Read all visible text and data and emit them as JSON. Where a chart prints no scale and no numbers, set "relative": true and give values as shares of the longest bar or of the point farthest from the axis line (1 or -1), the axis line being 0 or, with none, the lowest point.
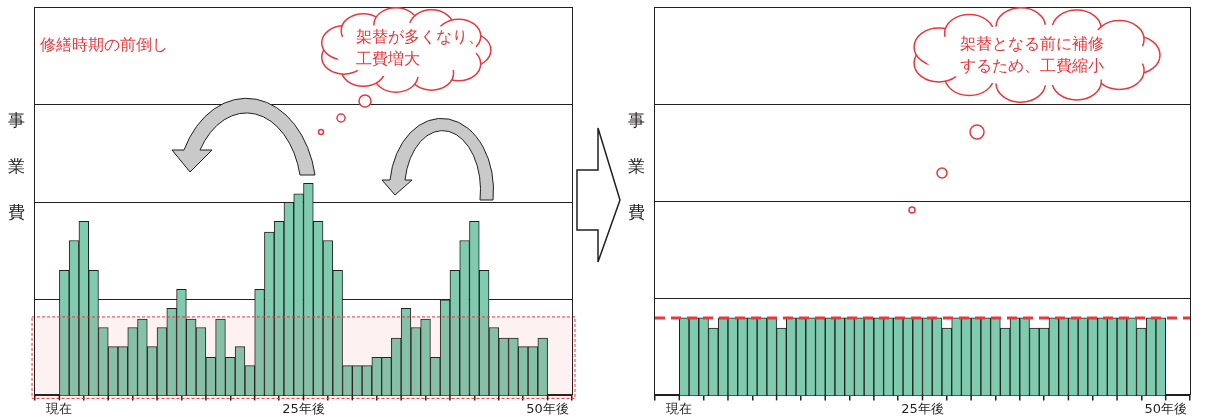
{
  "chart_data": [
    {
      "type": "bar",
      "relative": true,
      "color": "#7fcbb0",
      "ylabel": "事業費",
      "x": [
        0.5,
        1.5,
        2.5,
        3.5,
        4.5,
        5.5,
        6.5,
        7.5,
        8.5,
        9.5,
        10.5,
        11.5,
        12.5,
        13.5,
        14.5,
        15.5,
        16.5,
        17.5,
        18.5,
        19.5,
        20.5,
        21.5,
        22.5,
        23.5,
        24.5,
        25.5,
        26.5,
        27.5,
        28.5,
        29.5,
        30.5,
        31.5,
        32.5,
        33.5,
        34.5,
        35.5,
        36.5,
        37.5,
        38.5,
        39.5,
        40.5,
        41.5,
        42.5,
        43.5,
        44.5,
        45.5,
        46.5,
        47.5,
        48.5,
        49.5
      ],
      "values": [
        0.59,
        0.73,
        0.82,
        0.59,
        0.32,
        0.23,
        0.23,
        0.32,
        0.36,
        0.23,
        0.32,
        0.41,
        0.5,
        0.36,
        0.32,
        0.18,
        0.36,
        0.18,
        0.23,
        0.14,
        0.5,
        0.77,
        0.82,
        0.91,
        0.95,
        1,
        0.82,
        0.73,
        0.59,
        0.14,
        0.14,
        0.14,
        0.18,
        0.18,
        0.27,
        0.41,
        0.32,
        0.36,
        0.18,
        0.45,
        0.59,
        0.73,
        0.82,
        0.59,
        0.32,
        0.27,
        0.27,
        0.23,
        0.23,
        0.27
      ],
      "xlim": [
        0,
        50
      ],
      "xticks": [
        {
          "value": 0,
          "label": "現在"
        },
        {
          "value": 5,
          "label": null
        },
        {
          "value": 10,
          "label": null
        },
        {
          "value": 15,
          "label": null
        },
        {
          "value": 20,
          "label": null
        },
        {
          "value": 25,
          "label": "25年後"
        },
        {
          "value": 30,
          "label": null
        },
        {
          "value": 35,
          "label": null
        },
        {
          "value": 40,
          "label": null
        },
        {
          "value": 45,
          "label": null
        },
        {
          "value": 50,
          "label": "50年後"
        }
      ],
      "ref_lines": [
        {
          "axis": "y",
          "value": 0.45,
          "color": "#231f20"
        },
        {
          "axis": "y",
          "value": 0.91,
          "color": "#231f20"
        },
        {
          "axis": "y",
          "value": 1.37,
          "color": "#231f20"
        }
      ],
      "bands": [
        {
          "axis": "y",
          "from": 0,
          "to": 0.37,
          "color": "#e8383d"
        }
      ],
      "annotations": [
        "修繕時期の前倒し",
        "架替が多くなり、工費増大"
      ]
    },
    {
      "type": "bar",
      "relative": true,
      "color": "#7fcbb0",
      "ylabel": "事業費",
      "x": [
        0.5,
        1.5,
        2.5,
        3.5,
        4.5,
        5.5,
        6.5,
        7.5,
        8.5,
        9.5,
        10.5,
        11.5,
        12.5,
        13.5,
        14.5,
        15.5,
        16.5,
        17.5,
        18.5,
        19.5,
        20.5,
        21.5,
        22.5,
        23.5,
        24.5,
        25.5,
        26.5,
        27.5,
        28.5,
        29.5,
        30.5,
        31.5,
        32.5,
        33.5,
        34.5,
        35.5,
        36.5,
        37.5,
        38.5,
        39.5,
        40.5,
        41.5,
        42.5,
        43.5,
        44.5,
        45.5,
        46.5,
        47.5,
        48.5,
        49.5
      ],
      "values": [
        1,
        1,
        1,
        0.87,
        1,
        1,
        1,
        1,
        1,
        1,
        0.87,
        1,
        1,
        1,
        1,
        1,
        1,
        1,
        1,
        1,
        1,
        1,
        1,
        1,
        1,
        1,
        1,
        0.87,
        1,
        1,
        1,
        1,
        1,
        0.87,
        1,
        1,
        0.87,
        0.87,
        1,
        1,
        1,
        1,
        1,
        1,
        1,
        1,
        1,
        0.87,
        1,
        1
      ],
      "xlim": [
        0,
        50
      ],
      "xticks": [
        {
          "value": 0,
          "label": "現在"
        },
        {
          "value": 5,
          "label": null
        },
        {
          "value": 10,
          "label": null
        },
        {
          "value": 15,
          "label": null
        },
        {
          "value": 20,
          "label": null
        },
        {
          "value": 25,
          "label": "25年後"
        },
        {
          "value": 30,
          "label": null
        },
        {
          "value": 35,
          "label": null
        },
        {
          "value": 40,
          "label": null
        },
        {
          "value": 45,
          "label": null
        },
        {
          "value": 50,
          "label": "50年後"
        }
      ],
      "ref_lines": [
        {
          "axis": "y",
          "value": 1.25,
          "color": "#231f20"
        },
        {
          "axis": "y",
          "value": 2.5,
          "color": "#231f20"
        },
        {
          "axis": "y",
          "value": 3.75,
          "color": "#231f20"
        },
        {
          "axis": "y",
          "value": 1,
          "color": "#e8383d",
          "line_style": "dashed"
        }
      ],
      "annotations": [
        "架替となる前に補修するため、工費縮小"
      ]
    }
  ]
}
